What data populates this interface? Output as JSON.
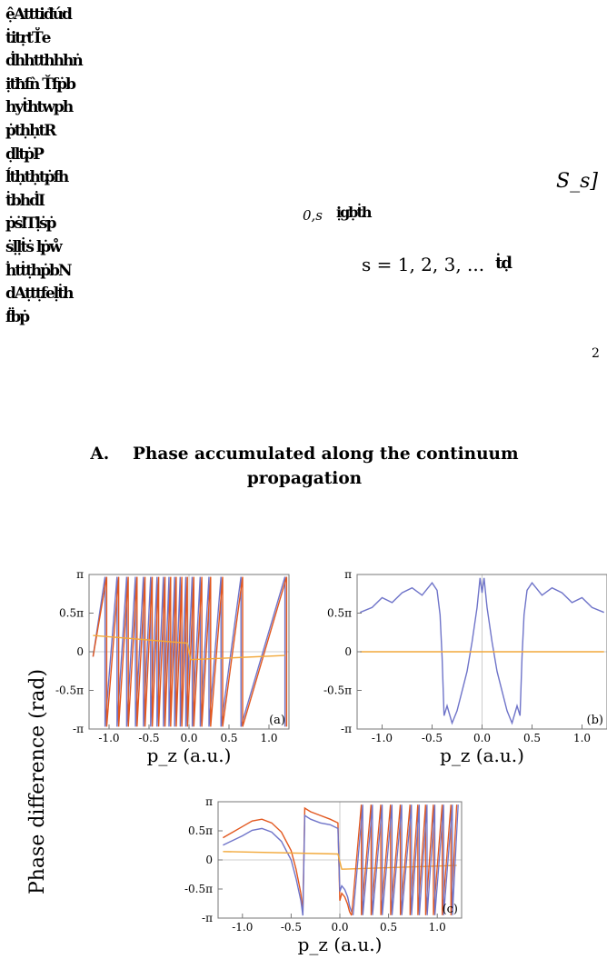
{
  "text_fragments": {
    "left_column_lines": [
      "ệAtttiđứd",
      "ṫitṛtT̊e",
      "ḋhhtthhhṅ",
      "ịtħfǹ Ťfṗb",
      "hyṫhtwph",
      "ṗtḥḥtR",
      "ḍltṗP",
      "ĺtḥtḥtṗfh",
      "ṫbhḋI",
      "ṗṡlTḷṡṗ",
      "ṡḷḷṫṡ lṗẘ",
      "ḣtṫṭhṗbN",
      "dAṭtṭfeḷṫh",
      "ḟḃṗ"
    ],
    "right_bracket": "S_s]",
    "subscript_fragment": "0,s",
    "subscript_garble": "ịgḅṫh",
    "s_list": "s = 1, 2, 3, ...",
    "s_list_tail": "ṫḍ",
    "superscript_two": "2"
  },
  "section": {
    "label": "A.",
    "title_line1": "Phase accumulated along the continuum",
    "title_line2": "propagation"
  },
  "figure": {
    "y_axis_title": "Phase difference (rad)",
    "x_axis_title": "p_z (a.u.)",
    "colors": {
      "blue": "#6f74c9",
      "red": "#e2571e",
      "orange": "#f2a93b",
      "gray": "#bfbfbf",
      "frame": "#777777"
    }
  },
  "chart_data": [
    {
      "type": "line",
      "panel_label": "(a)",
      "xlabel": "p_z (a.u.)",
      "ylabel": "Phase difference (rad)",
      "xlim": [
        -1.25,
        1.25
      ],
      "ylim": [
        -3.1416,
        3.1416
      ],
      "x_ticks": [
        "-1.0",
        "-0.5",
        "0.0",
        "0.5",
        "1.0"
      ],
      "y_ticks": [
        "π",
        "0.5π",
        "0",
        "-0.5π",
        "-π"
      ],
      "series": [
        {
          "color": "blue",
          "wrap_points": [
            -1.05,
            -0.9,
            -0.78,
            -0.67,
            -0.57,
            -0.48,
            -0.4,
            -0.32,
            -0.25,
            -0.18,
            -0.11,
            -0.04,
            0.04,
            0.14,
            0.25,
            0.4,
            0.65,
            1.2
          ],
          "slope_sign": 1
        },
        {
          "color": "red",
          "wrap_points": [
            -1.03,
            -0.88,
            -0.76,
            -0.65,
            -0.55,
            -0.46,
            -0.38,
            -0.3,
            -0.23,
            -0.16,
            -0.09,
            -0.02,
            0.06,
            0.16,
            0.27,
            0.42,
            0.67,
            1.22
          ],
          "slope_sign": 1
        },
        {
          "color": "orange",
          "x": [
            -1.2,
            -0.02,
            0.02,
            1.2
          ],
          "y": [
            0.66,
            0.35,
            -0.32,
            -0.15
          ]
        }
      ]
    },
    {
      "type": "line",
      "panel_label": "(b)",
      "xlabel": "p_z (a.u.)",
      "xlim": [
        -1.25,
        1.25
      ],
      "ylim": [
        -3.1416,
        3.1416
      ],
      "x_ticks": [
        "-1.0",
        "-0.5",
        "0.0",
        "0.5",
        "1.0"
      ],
      "y_ticks": [
        "π",
        "0.5π",
        "0",
        "-0.5π",
        "-π"
      ],
      "series": [
        {
          "color": "blue",
          "x": [
            -1.22,
            -1.1,
            -1.0,
            -0.9,
            -0.8,
            -0.7,
            -0.6,
            -0.5,
            -0.45,
            -0.42,
            -0.4,
            -0.38,
            -0.35,
            -0.3,
            -0.25,
            -0.2,
            -0.15,
            -0.1,
            -0.05,
            -0.02,
            0.0,
            0.02,
            0.05,
            0.1,
            0.15,
            0.2,
            0.25,
            0.3,
            0.35,
            0.38,
            0.4,
            0.42,
            0.45,
            0.5,
            0.6,
            0.7,
            0.8,
            0.9,
            1.0,
            1.1,
            1.22
          ],
          "y": [
            1.6,
            1.8,
            2.2,
            2.0,
            2.4,
            2.6,
            2.3,
            2.8,
            2.5,
            1.5,
            -0.2,
            -2.6,
            -2.2,
            -2.9,
            -2.4,
            -1.6,
            -0.8,
            0.4,
            1.8,
            3.0,
            2.4,
            3.0,
            1.8,
            0.4,
            -0.8,
            -1.6,
            -2.4,
            -2.9,
            -2.2,
            -2.6,
            -0.2,
            1.5,
            2.5,
            2.8,
            2.3,
            2.6,
            2.4,
            2.0,
            2.2,
            1.8,
            1.6
          ]
        },
        {
          "color": "orange",
          "x": [
            -1.22,
            1.22
          ],
          "y": [
            0.0,
            0.0
          ]
        }
      ]
    },
    {
      "type": "line",
      "panel_label": "(c)",
      "xlabel": "p_z (a.u.)",
      "xlim": [
        -1.25,
        1.25
      ],
      "ylim": [
        -3.1416,
        3.1416
      ],
      "x_ticks": [
        "-1.0",
        "-0.5",
        "0.0",
        "0.5",
        "1.0"
      ],
      "y_ticks": [
        "π",
        "0.5π",
        "0",
        "-0.5π",
        "-π"
      ],
      "series": [
        {
          "color": "red",
          "x": [
            -1.2,
            -1.0,
            -0.9,
            -0.8,
            -0.7,
            -0.6,
            -0.5,
            -0.45,
            -0.4,
            -0.38,
            -0.36,
            -0.3,
            -0.2,
            -0.1,
            -0.02,
            0.0,
            0.02,
            0.05,
            0.08,
            0.1,
            0.12
          ],
          "y": [
            1.2,
            1.8,
            2.1,
            2.2,
            2.0,
            1.5,
            0.5,
            -0.5,
            -1.8,
            -2.8,
            2.8,
            2.6,
            2.4,
            2.2,
            2.0,
            -2.2,
            -1.8,
            -2.0,
            -2.4,
            -2.8,
            -3.0
          ]
        },
        {
          "color": "blue",
          "x": [
            -1.2,
            -1.0,
            -0.9,
            -0.8,
            -0.7,
            -0.6,
            -0.5,
            -0.45,
            -0.4,
            -0.38,
            -0.36,
            -0.3,
            -0.2,
            -0.1,
            -0.02,
            0.0,
            0.02,
            0.05,
            0.08,
            0.1,
            0.12
          ],
          "y": [
            0.8,
            1.3,
            1.6,
            1.7,
            1.5,
            1.0,
            0.0,
            -1.0,
            -2.2,
            -3.0,
            2.4,
            2.2,
            2.0,
            1.9,
            1.7,
            -1.7,
            -1.4,
            -1.6,
            -2.0,
            -2.5,
            -2.8
          ]
        },
        {
          "color": "orange",
          "x": [
            -1.2,
            -0.02,
            0.02,
            1.2
          ],
          "y": [
            0.45,
            0.32,
            -0.5,
            -0.3
          ]
        }
      ],
      "right_sawtooth": {
        "wrap_points": [
          0.12,
          0.22,
          0.32,
          0.42,
          0.52,
          0.62,
          0.72,
          0.8,
          0.88,
          0.96,
          1.05,
          1.14,
          1.2
        ]
      }
    }
  ]
}
